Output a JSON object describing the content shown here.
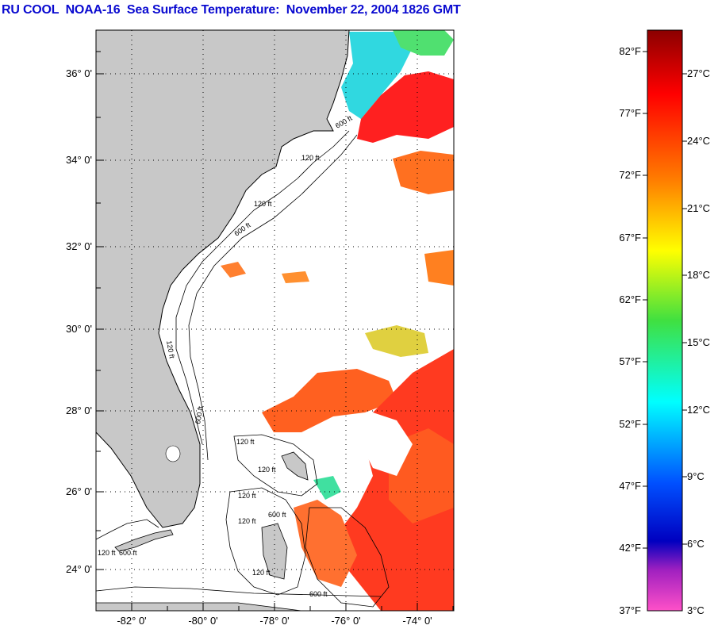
{
  "title": "RU COOL  NOAA-16  Sea Surface Temperature:  November 22, 2004 1826 GMT",
  "map": {
    "lat_ticks": [
      "36° 0'",
      "34° 0'",
      "32° 0'",
      "30° 0'",
      "28° 0'",
      "26° 0'",
      "24° 0'"
    ],
    "lon_ticks": [
      "-82° 0'",
      "-80° 0'",
      "-78° 0'",
      "-76° 0'",
      "-74° 0'"
    ],
    "contour_labels": [
      "120 ft",
      "600 ft",
      "120 ft",
      "600 ft",
      "120 ft",
      "600 ft",
      "120 ft",
      "120 ft",
      "120 ft",
      "600 ft",
      "120 ft",
      "600 ft",
      "120 ft",
      "120 ft",
      "600 ft"
    ],
    "colors": {
      "land": "#c8c8c8",
      "ocean_cloud": "#ffffff",
      "warm": "#ff5a1e",
      "hot": "#ff1010",
      "cool": "#30d0ff",
      "frame": "#000000"
    }
  },
  "colorbar": {
    "fahrenheit": [
      "82°F",
      "77°F",
      "72°F",
      "67°F",
      "62°F",
      "57°F",
      "52°F",
      "47°F",
      "42°F",
      "37°F"
    ],
    "celsius": [
      "27°C",
      "24°C",
      "21°C",
      "18°C",
      "15°C",
      "12°C",
      "9°C",
      "6°C",
      "3°C"
    ],
    "stops": [
      "#8b0000",
      "#ff0000",
      "#ff7f00",
      "#ffff00",
      "#40e040",
      "#00ffff",
      "#0050ff",
      "#0000c0",
      "#a020c0",
      "#ff50c8"
    ]
  }
}
